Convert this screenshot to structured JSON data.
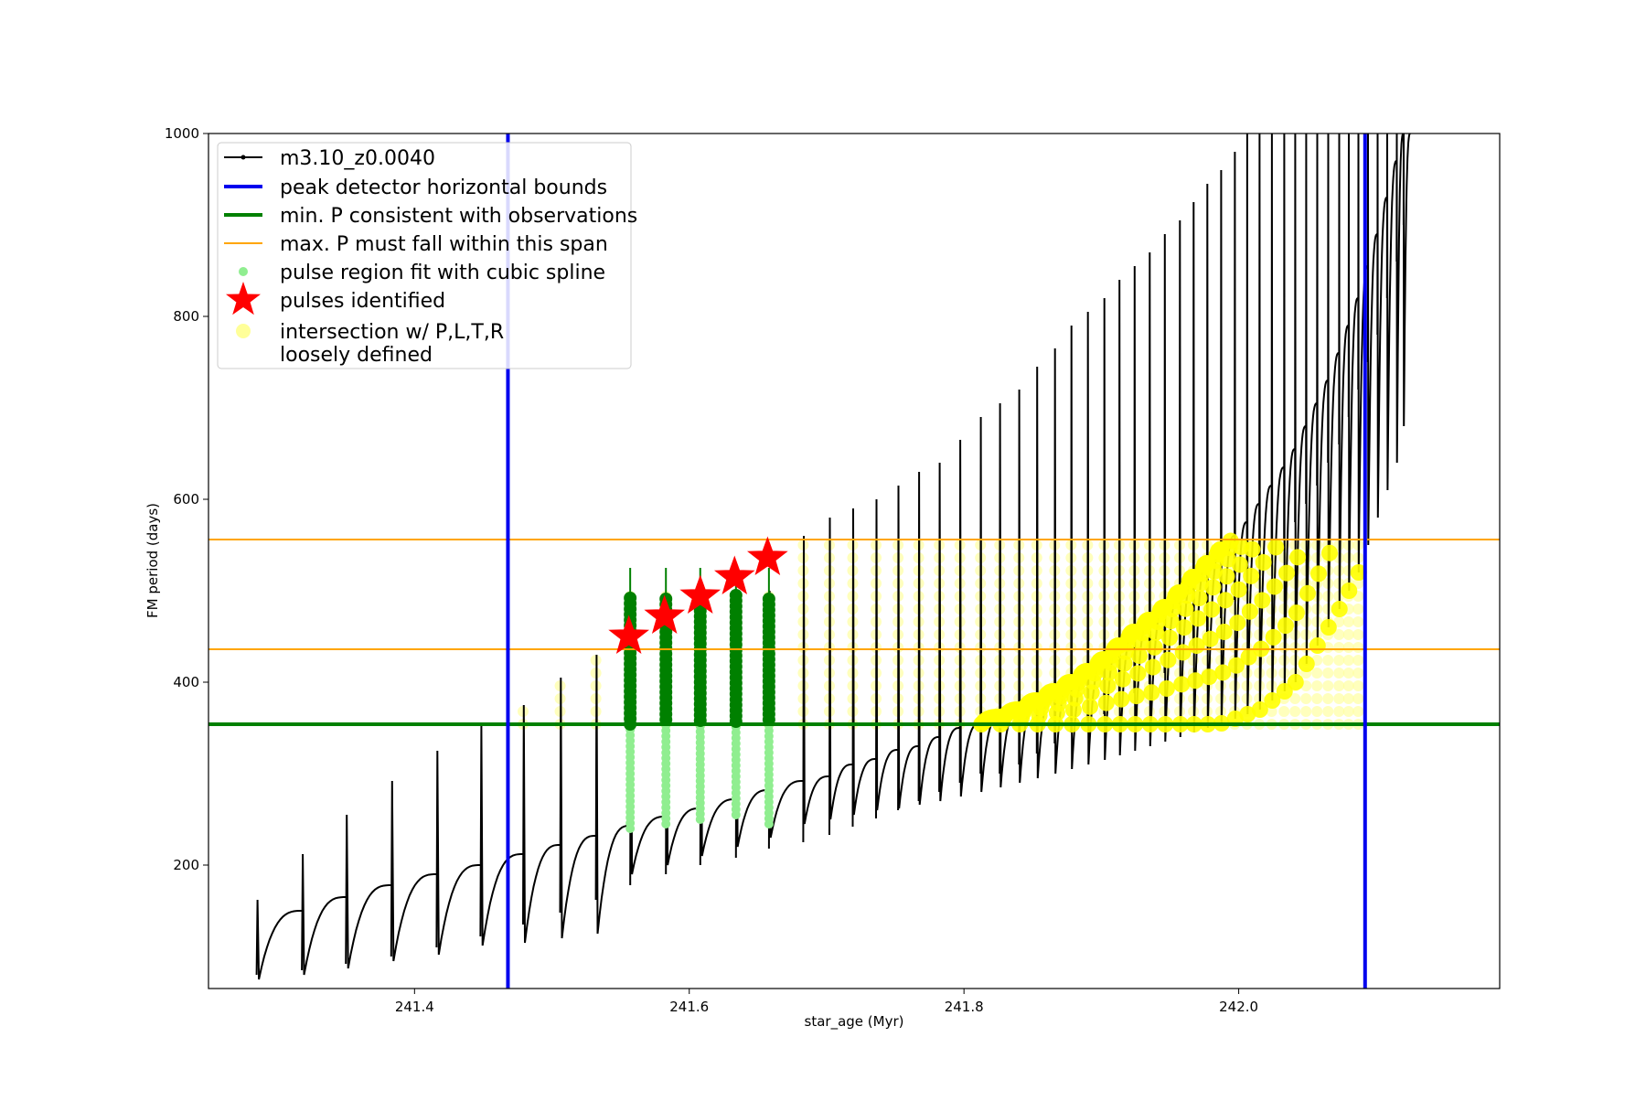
{
  "chart_data": {
    "type": "scatter",
    "title": "",
    "xlabel": "star_age (Myr)",
    "ylabel": "FM period (days)",
    "xlim": [
      241.25,
      242.19
    ],
    "ylim": [
      65,
      1000
    ],
    "xticks": [
      241.4,
      241.6,
      241.8,
      242.0
    ],
    "yticks": [
      200,
      400,
      600,
      800,
      1000
    ],
    "xtick_labels": [
      "241.4",
      "241.6",
      "241.8",
      "242.0"
    ],
    "ytick_labels": [
      "200",
      "400",
      "600",
      "800",
      "1000"
    ],
    "grid": false,
    "legend_position": "top-left",
    "legend": [
      {
        "label": "m3.10_z0.0040",
        "kind": "line-marker",
        "color": "#000000"
      },
      {
        "label": "peak detector horizontal bounds",
        "kind": "line",
        "color": "#0000ee"
      },
      {
        "label": "min. P consistent with observations",
        "kind": "line",
        "color": "#008000"
      },
      {
        "label": "max. P must fall within this span",
        "kind": "line",
        "color": "#ffa500"
      },
      {
        "label": "pulse region fit with cubic spline",
        "kind": "dot",
        "color": "#90ee90"
      },
      {
        "label": "pulses identified",
        "kind": "star",
        "color": "#ff0000"
      },
      {
        "label": "intersection w/ P,L,T,R",
        "label2": "loosely defined",
        "kind": "dot",
        "color": "#ffff99"
      }
    ],
    "track": {
      "name": "m3.10_z0.0040",
      "pulse_ages": [
        241.285,
        241.318,
        241.35,
        241.383,
        241.416,
        241.448,
        241.479,
        241.506,
        241.532,
        241.557,
        241.583,
        241.608,
        241.634,
        241.658,
        241.683,
        241.702,
        241.719,
        241.736,
        241.752,
        241.767,
        241.782,
        241.797,
        241.812,
        241.826,
        241.84,
        241.853,
        241.866,
        241.878,
        241.89,
        241.902,
        241.913,
        241.924,
        241.935,
        241.946,
        241.957,
        241.967,
        241.977,
        241.987,
        241.997,
        242.006,
        242.015,
        242.024,
        242.033,
        242.041,
        242.049,
        242.057,
        242.065,
        242.073,
        242.08,
        242.087,
        242.094,
        242.101,
        242.108,
        242.115,
        242.12,
        242.125
      ],
      "base_period": [
        80,
        85,
        92,
        100,
        110,
        122,
        135,
        148,
        162,
        178,
        190,
        200,
        208,
        218,
        225,
        233,
        242,
        251,
        260,
        270,
        280,
        290,
        300,
        300,
        310,
        322,
        333,
        345,
        355,
        365,
        375,
        388,
        398,
        410,
        425,
        440,
        455,
        470,
        490,
        510,
        525,
        540,
        555,
        575,
        595,
        615,
        640,
        660,
        690,
        720,
        750,
        780,
        820,
        860,
        900,
        950
      ],
      "end_period": [
        150,
        165,
        178,
        190,
        200,
        212,
        222,
        232,
        243,
        253,
        262,
        272,
        282,
        292,
        297,
        310,
        316,
        326,
        330,
        340,
        350,
        355,
        362,
        370,
        380,
        390,
        400,
        412,
        425,
        440,
        455,
        468,
        482,
        498,
        515,
        530,
        545,
        560,
        575,
        595,
        615,
        635,
        655,
        680,
        705,
        730,
        760,
        790,
        820,
        855,
        890,
        930,
        970,
        1000,
        1000,
        1000
      ],
      "spike_period": [
        162,
        212,
        255,
        292,
        325,
        352,
        375,
        405,
        430,
        495,
        495,
        500,
        500,
        500,
        560,
        580,
        590,
        600,
        615,
        630,
        640,
        665,
        690,
        705,
        720,
        745,
        765,
        790,
        805,
        820,
        840,
        855,
        870,
        890,
        905,
        925,
        945,
        960,
        980,
        1000,
        1000,
        1000,
        1000,
        1000,
        1000,
        1000,
        1000,
        1000,
        1000,
        1000,
        1000,
        1000,
        1000,
        1000,
        1000,
        1000
      ],
      "dip_period": [
        75,
        80,
        87,
        95,
        102,
        112,
        115,
        120,
        125,
        190,
        200,
        210,
        220,
        230,
        245,
        250,
        255,
        260,
        262,
        266,
        270,
        275,
        280,
        285,
        290,
        295,
        300,
        305,
        310,
        315,
        320,
        325,
        330,
        335,
        340,
        345,
        350,
        355,
        360,
        365,
        370,
        380,
        390,
        400,
        420,
        440,
        460,
        480,
        500,
        520,
        550,
        580,
        610,
        640,
        680,
        720
      ]
    },
    "peak_detector_bounds_x": [
      241.468,
      242.092
    ],
    "min_period_observed": 354,
    "max_period_span": [
      436,
      556
    ],
    "spline_fit_ages": [
      241.557,
      241.583,
      241.608,
      241.634,
      241.658
    ],
    "spline_fit_ranges": [
      [
        240,
        495
      ],
      [
        245,
        495
      ],
      [
        250,
        495
      ],
      [
        255,
        495
      ],
      [
        245,
        495
      ]
    ],
    "pulses_identified": [
      {
        "x": 241.556,
        "y": 450
      },
      {
        "x": 241.582,
        "y": 472
      },
      {
        "x": 241.608,
        "y": 494
      },
      {
        "x": 241.633,
        "y": 515
      },
      {
        "x": 241.657,
        "y": 536
      }
    ],
    "intersection_region": {
      "x_range": [
        241.468,
        242.092
      ],
      "y_range": [
        354,
        556
      ]
    }
  }
}
